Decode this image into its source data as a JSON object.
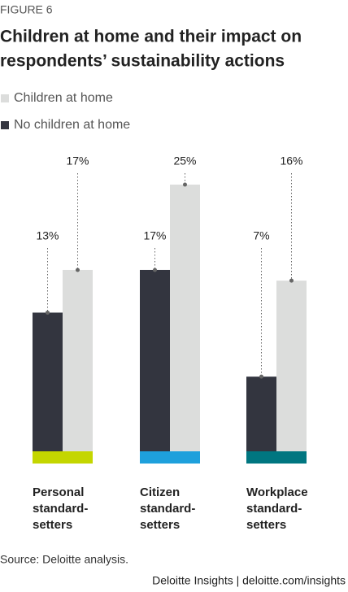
{
  "chart_data": {
    "type": "bar",
    "figure_label": "FIGURE 6",
    "title": [
      "Children at home and their impact on",
      "respondents’ sustainability actions"
    ],
    "categories": [
      [
        "Personal",
        "standard-",
        "setters"
      ],
      [
        "Citizen",
        "standard-",
        "setters"
      ],
      [
        "Workplace",
        "standard-",
        "setters"
      ]
    ],
    "category_colors": [
      "#c4d600",
      "#1ea0dc",
      "#007680"
    ],
    "series": [
      {
        "name": "No children at home",
        "color": "#33353f",
        "values": [
          13,
          17,
          7
        ],
        "value_labels": [
          "13%",
          "17%",
          "7%"
        ]
      },
      {
        "name": "Children at home",
        "color": "#dcdddc",
        "values": [
          17,
          25,
          16
        ],
        "value_labels": [
          "17%",
          "25%",
          "16%"
        ]
      }
    ],
    "source": "Source: Deloitte analysis.",
    "footer": "Deloitte Insights | deloitte.com/insights"
  }
}
